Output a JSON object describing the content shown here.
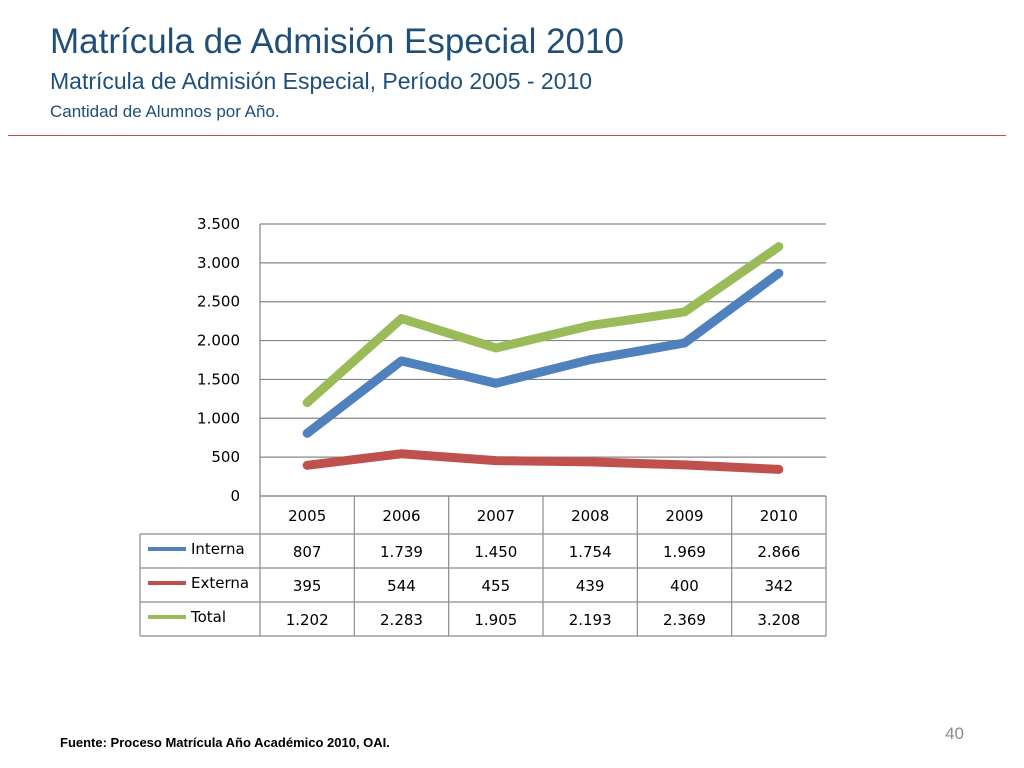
{
  "header": {
    "title": "Matrícula de Admisión Especial 2010",
    "subtitle": "Matrícula de Admisión Especial, Período 2005 - 2010",
    "caption": "Cantidad de Alumnos por Año."
  },
  "footer": {
    "source": "Fuente: Proceso Matrícula Año Académico 2010, OAI.",
    "page_number": "40"
  },
  "chart_data": {
    "type": "line",
    "title": "",
    "xlabel": "",
    "ylabel": "",
    "categories": [
      "2005",
      "2006",
      "2007",
      "2008",
      "2009",
      "2010"
    ],
    "ylim": [
      0,
      3500
    ],
    "yticks": [
      0,
      500,
      1000,
      1500,
      2000,
      2500,
      3000,
      3500
    ],
    "ytick_labels": [
      "0",
      "500",
      "1.000",
      "1.500",
      "2.000",
      "2.500",
      "3.000",
      "3.500"
    ],
    "grid": true,
    "legend": "data-table",
    "series": [
      {
        "name": "Interna",
        "color": "#4f81bd",
        "values": [
          807,
          1739,
          1450,
          1754,
          1969,
          2866
        ],
        "labels": [
          "807",
          "1.739",
          "1.450",
          "1.754",
          "1.969",
          "2.866"
        ]
      },
      {
        "name": "Externa",
        "color": "#c0504d",
        "values": [
          395,
          544,
          455,
          439,
          400,
          342
        ],
        "labels": [
          "395",
          "544",
          "455",
          "439",
          "400",
          "342"
        ]
      },
      {
        "name": "Total",
        "color": "#9bbb59",
        "values": [
          1202,
          2283,
          1905,
          2193,
          2369,
          3208
        ],
        "labels": [
          "1.202",
          "2.283",
          "1.905",
          "2.193",
          "2.369",
          "3.208"
        ]
      }
    ]
  }
}
